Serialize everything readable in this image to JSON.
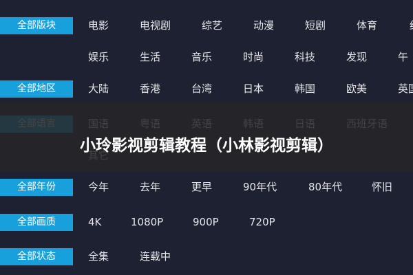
{
  "rows": [
    {
      "label": "全部版块",
      "lines": [
        [
          "电影",
          "电视剧",
          "综艺",
          "动漫",
          "短剧",
          "体育",
          "纪"
        ],
        [
          "娱乐",
          "生活",
          "音乐",
          "时尚",
          "科技",
          "发现",
          "午"
        ]
      ]
    },
    {
      "label": "全部地区",
      "lines": [
        [
          "大陆",
          "香港",
          "台湾",
          "日本",
          "韩国",
          "欧美",
          "英国"
        ]
      ]
    },
    {
      "label": "全部语言",
      "lines": [
        [
          "国语",
          "粤语",
          "英语",
          "韩语",
          "日语",
          "西班牙语"
        ],
        [
          "其它"
        ]
      ]
    },
    {
      "label": "全部年份",
      "lines": [
        [
          "今年",
          "去年",
          "更早",
          "90年代",
          "80年代",
          "怀旧"
        ]
      ]
    },
    {
      "label": "全部画质",
      "lines": [
        [
          "4K",
          "1080P",
          "900P",
          "720P"
        ]
      ]
    },
    {
      "label": "全部状态",
      "lines": [
        [
          "全集",
          "连载中"
        ]
      ]
    }
  ],
  "overlay": {
    "title": "小玲影视剪辑教程（小林影视剪辑）"
  }
}
